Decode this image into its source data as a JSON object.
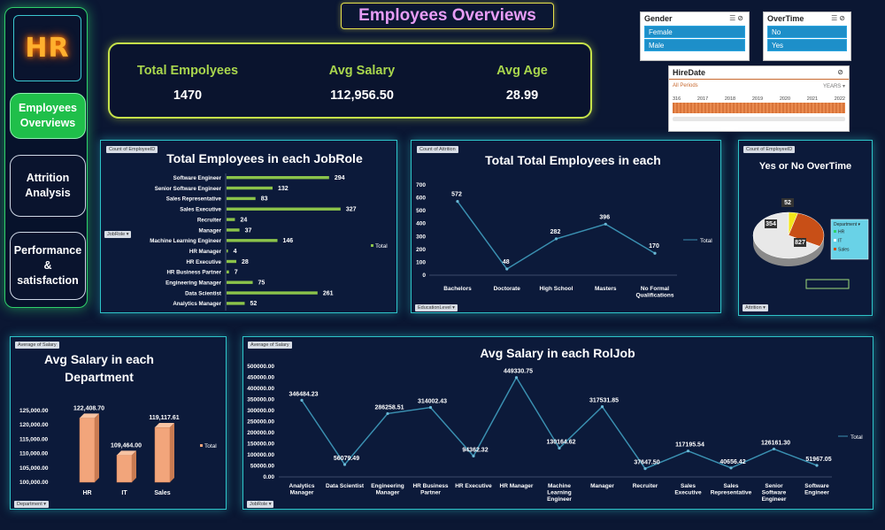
{
  "title": "Employees Overviews",
  "logo": "HR",
  "nav": [
    {
      "label": "Employees\nOverviews",
      "active": true
    },
    {
      "label": "Attrition\nAnalysis",
      "active": false
    },
    {
      "label": "Performance\n&\nsatisfaction",
      "active": false
    }
  ],
  "kpis": [
    {
      "label": "Total Empolyees",
      "value": "1470"
    },
    {
      "label": "Avg Salary",
      "value": "112,956.50"
    },
    {
      "label": "Avg Age",
      "value": "28.99"
    }
  ],
  "slicers": {
    "gender": {
      "title": "Gender",
      "items": [
        "Female",
        "Male"
      ]
    },
    "overtime": {
      "title": "OverTime",
      "items": [
        "No",
        "Yes"
      ]
    },
    "hiredate": {
      "title": "HireDate",
      "period": "All Periods",
      "unit": "YEARS ▾",
      "years": [
        "316",
        "2017",
        "2018",
        "2019",
        "2020",
        "2021",
        "2022"
      ]
    }
  },
  "chart_data": [
    {
      "id": "jobrole",
      "type": "bar",
      "title": "Total Employees in each JobRole",
      "field_tag": "Count of EmployeeID",
      "axis_tag": "JobRole ▾",
      "legend": "Total",
      "categories": [
        "Software Engineer",
        "Senior Software Engineer",
        "Sales Representative",
        "Sales Executive",
        "Recruiter",
        "Manager",
        "Machine Learning Engineer",
        "HR Manager",
        "HR Executive",
        "HR Business Partner",
        "Engineering Manager",
        "Data Scientist",
        "Analytics Manager"
      ],
      "values": [
        294,
        132,
        83,
        327,
        24,
        37,
        146,
        4,
        28,
        7,
        75,
        261,
        52
      ],
      "color": "#8bc34a"
    },
    {
      "id": "education",
      "type": "line",
      "title": "Total Total Employees in each",
      "field_tag": "Count of Attrition",
      "axis_tag": "EducationLevel ▾",
      "legend": "Total",
      "categories": [
        "Bachelors",
        "Doctorate",
        "High School",
        "Masters",
        "No Formal\nQualifications"
      ],
      "values": [
        572,
        48,
        282,
        396,
        170
      ],
      "yticks": [
        "0",
        "100",
        "200",
        "300",
        "400",
        "500",
        "600",
        "700"
      ],
      "ylim": [
        0,
        700
      ],
      "color": "#3a8fb0"
    },
    {
      "id": "overtime",
      "type": "pie",
      "title": "Yes or No OverTime",
      "field_tag": "Count of EmployeeID",
      "axis_tag": "Attrition ▾",
      "legend_title": "Department ▾",
      "legend_items": [
        "HR",
        "IT",
        "Sales"
      ],
      "labels": [
        "52",
        "354",
        "827"
      ],
      "values": [
        52,
        354,
        827
      ],
      "colors": [
        "#f4e61a",
        "#c84f17",
        "#e8e8e8"
      ]
    },
    {
      "id": "dept_salary",
      "type": "bar",
      "title": "Avg Salary in each Department",
      "field_tag": "Average of Salary",
      "axis_tag": "Department ▾",
      "legend": "Total",
      "categories": [
        "HR",
        "IT",
        "Sales"
      ],
      "values": [
        122408.7,
        109464.0,
        119117.61
      ],
      "value_labels": [
        "122,408.70",
        "109,464.00",
        "119,117.61"
      ],
      "yticks": [
        "100,000.00",
        "105,000.00",
        "110,000.00",
        "115,000.00",
        "120,000.00",
        "125,000.00"
      ],
      "ylim": [
        100000,
        125000
      ],
      "color": "#f2a57b"
    },
    {
      "id": "role_salary",
      "type": "line",
      "title": "Avg Salary in each  RolJob",
      "field_tag": "Average of Salary",
      "axis_tag": "JobRole ▾",
      "legend": "Total",
      "categories": [
        "Analytics\nManager",
        "Data Scientist",
        "Engineering\nManager",
        "HR Business\nPartner",
        "HR Executive",
        "HR Manager",
        "Machine\nLearning\nEngineer",
        "Manager",
        "Recruiter",
        "Sales\nExecutive",
        "Sales\nRepresentative",
        "Senior\nSoftware\nEngineer",
        "Software\nEngineer"
      ],
      "values": [
        346484.23,
        56079.49,
        286258.51,
        314002.43,
        94362.32,
        449330.75,
        130164.62,
        317531.85,
        37647.5,
        117195.54,
        40656.42,
        126161.3,
        51967.05
      ],
      "value_labels": [
        "346484.23",
        "56079.49",
        "286258.51",
        "314002.43",
        "94362.32",
        "449330.75",
        "130164.62",
        "317531.85",
        "37647.50",
        "117195.54",
        "40656.42",
        "126161.30",
        "51967.05"
      ],
      "yticks": [
        "0.00",
        "50000.00",
        "100000.00",
        "150000.00",
        "200000.00",
        "250000.00",
        "300000.00",
        "350000.00",
        "400000.00",
        "450000.00",
        "500000.00"
      ],
      "ylim": [
        0,
        500000
      ],
      "color": "#3a8fb0"
    }
  ]
}
